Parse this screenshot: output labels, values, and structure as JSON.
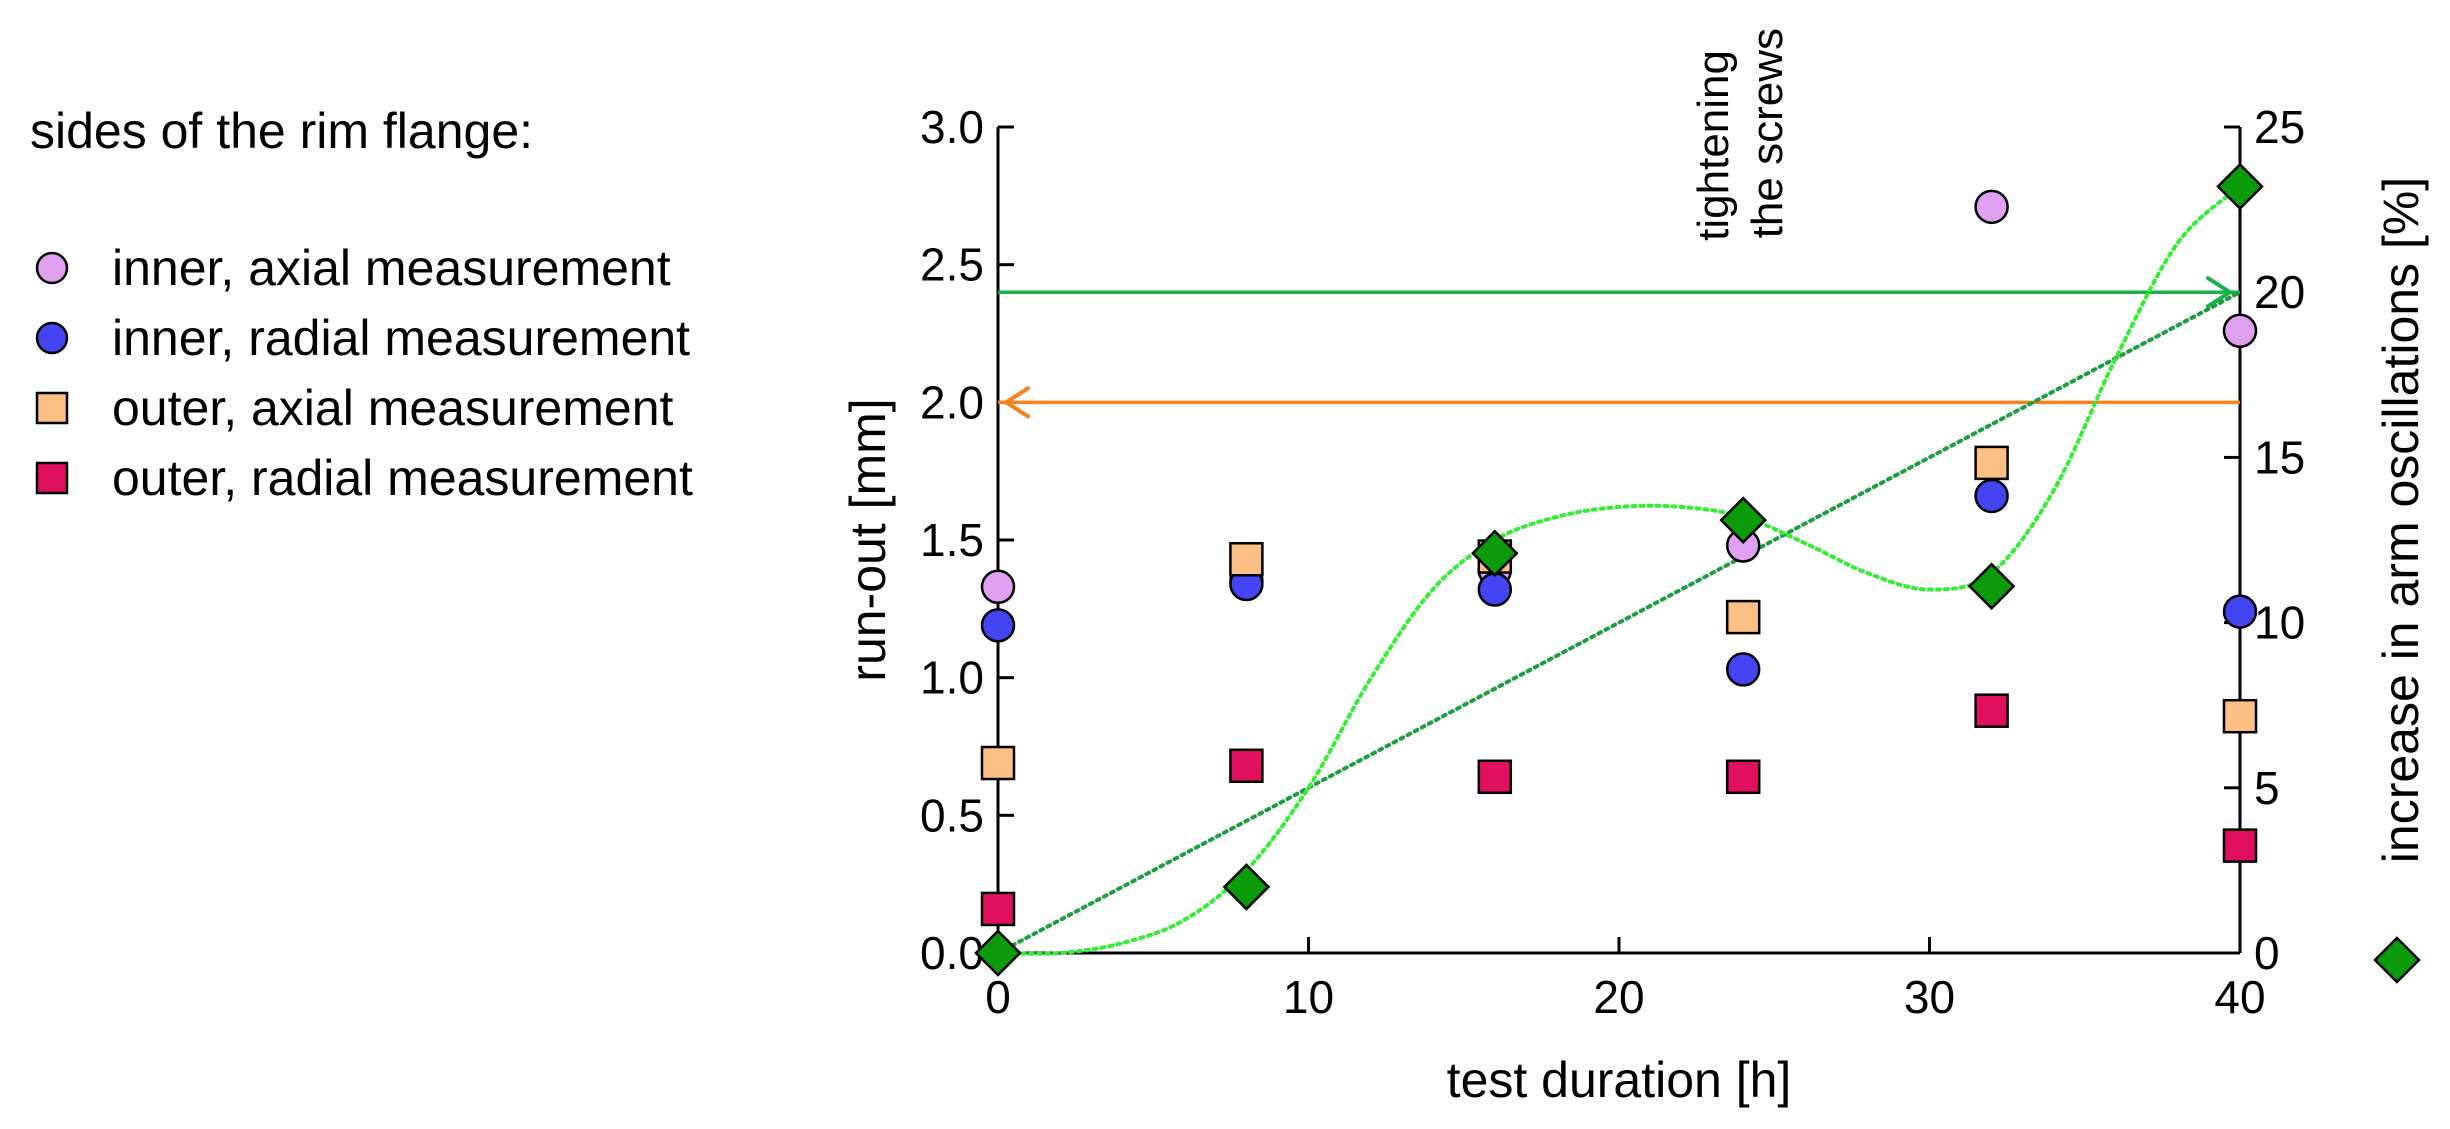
{
  "chart_data": {
    "type": "scatter",
    "title": "",
    "xlabel": "test duration [h]",
    "ylabel": "run-out [mm]",
    "y2label": "increase in arm oscillations [%]",
    "xlim": [
      0,
      40
    ],
    "ylim": [
      0,
      3.0
    ],
    "y2lim": [
      0,
      25
    ],
    "xticks": [
      "0",
      "10",
      "20",
      "30",
      "40"
    ],
    "yticks": [
      "0.0",
      "0.5",
      "1.0",
      "1.5",
      "2.0",
      "2.5",
      "3.0"
    ],
    "y2ticks": [
      "0",
      "5",
      "10",
      "15",
      "20",
      "25"
    ],
    "grid": false,
    "legend_title": "sides of the rim flange:",
    "annotation": [
      "tightening",
      "the screws"
    ],
    "series": [
      {
        "name": "inner, axial measurement",
        "marker": "circle",
        "color": "#e0a0f0",
        "axis": "left",
        "x": [
          0,
          8,
          16,
          24,
          32,
          40
        ],
        "values": [
          1.33,
          1.35,
          1.39,
          1.48,
          2.71,
          2.26
        ]
      },
      {
        "name": "inner, radial measurement",
        "marker": "circle",
        "color": "#4444f2",
        "axis": "left",
        "x": [
          0,
          8,
          16,
          24,
          32,
          40
        ],
        "values": [
          1.19,
          1.34,
          1.32,
          1.03,
          1.66,
          1.24
        ]
      },
      {
        "name": "outer, axial measurement",
        "marker": "square",
        "color": "#fcc085",
        "axis": "left",
        "x": [
          0,
          8,
          16,
          24,
          32,
          40
        ],
        "values": [
          0.69,
          1.43,
          1.44,
          1.22,
          1.78,
          0.86
        ]
      },
      {
        "name": "outer, radial measurement",
        "marker": "square",
        "color": "#e0105e",
        "axis": "left",
        "x": [
          0,
          8,
          16,
          24,
          32,
          40
        ],
        "values": [
          0.16,
          0.68,
          0.64,
          0.64,
          0.88,
          0.39
        ]
      },
      {
        "name": "increase in arm oscillations",
        "marker": "diamond",
        "color": "#0a9a0a",
        "axis": "right",
        "x": [
          0,
          8,
          16,
          24,
          32,
          40
        ],
        "values": [
          0,
          2,
          12.1,
          13.1,
          11.1,
          23.2
        ]
      }
    ],
    "trend_linear": {
      "color": "#1e9e40",
      "x": [
        0,
        40
      ],
      "values": [
        0,
        20
      ]
    },
    "trend_curve": {
      "color": "#33ee33",
      "x": [
        0,
        2,
        4,
        6,
        8,
        10,
        12,
        14,
        16,
        18,
        20,
        22,
        24,
        26,
        28,
        30,
        32,
        34,
        36,
        38,
        40
      ],
      "values": [
        0,
        0,
        0.3,
        1.0,
        2.5,
        5.0,
        8.3,
        11.0,
        12.5,
        13.2,
        13.5,
        13.5,
        13.2,
        12.4,
        11.5,
        11.0,
        11.5,
        14.0,
        18.0,
        21.5,
        23.2
      ]
    },
    "reference_arrows": [
      {
        "color": "#1ab04a",
        "axis": "right",
        "value": 20,
        "direction": "right"
      },
      {
        "color": "#f58220",
        "axis": "left",
        "value": 2.0,
        "direction": "left"
      }
    ]
  }
}
